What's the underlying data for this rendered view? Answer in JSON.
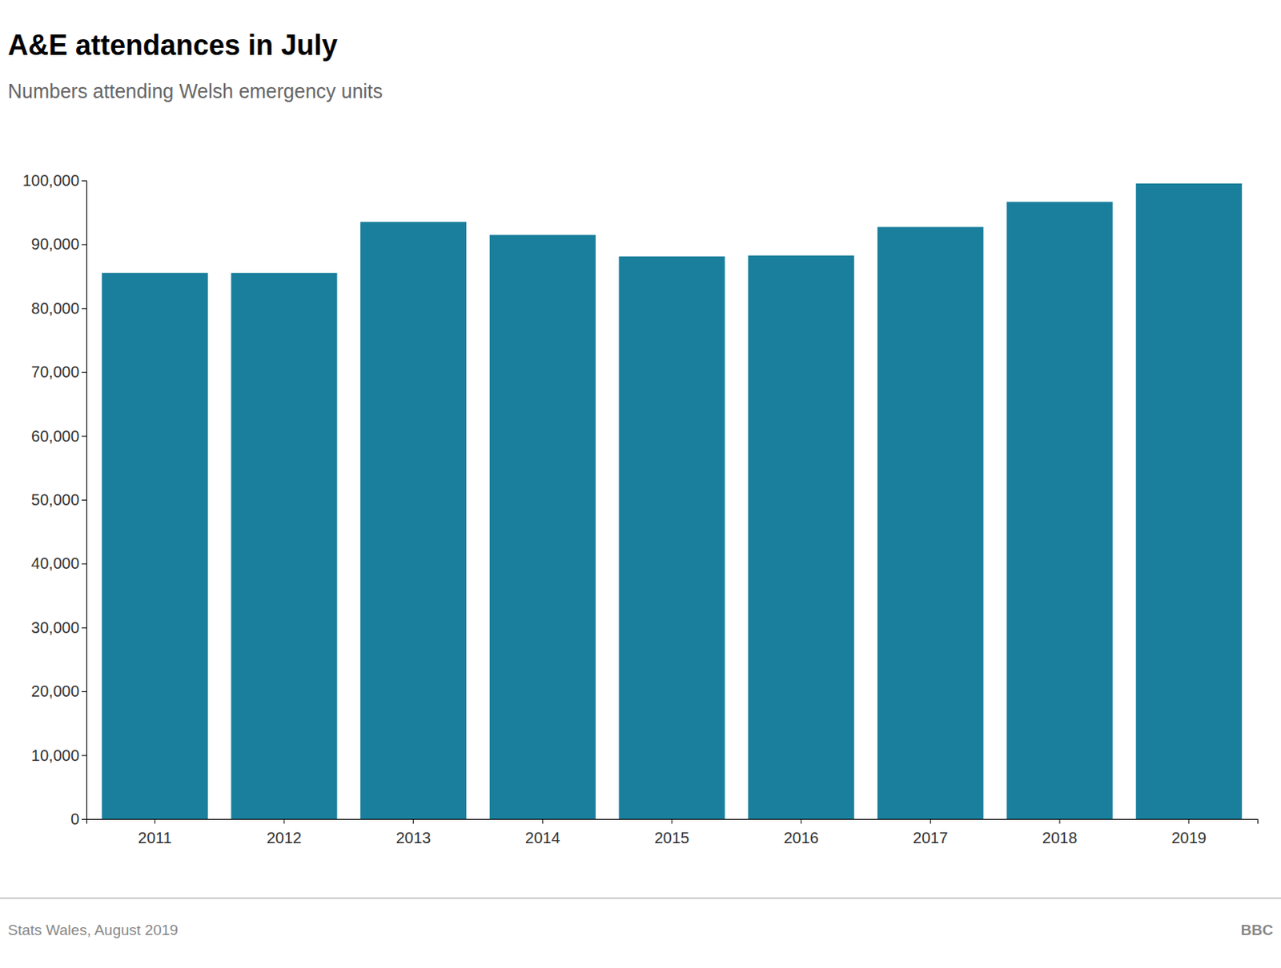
{
  "chart_data": {
    "type": "bar",
    "title": "A&E attendances in July",
    "subtitle": "Numbers attending Welsh emergency units",
    "categories": [
      "2011",
      "2012",
      "2013",
      "2014",
      "2015",
      "2016",
      "2017",
      "2018",
      "2019"
    ],
    "values": [
      85527,
      85521,
      93503,
      91464,
      88104,
      88249,
      92706,
      96645,
      99525
    ],
    "color": "#1a7f9c",
    "ylim": [
      0,
      100000
    ],
    "yticks": [
      0,
      {
        "value": 10000,
        "label": "10,000"
      },
      {
        "value": 20000,
        "label": "20,000"
      },
      {
        "value": 30000,
        "label": "30,000"
      },
      {
        "value": 40000,
        "label": "40,000"
      },
      {
        "value": 50000,
        "label": "50,000"
      },
      {
        "value": 60000,
        "label": "60,000"
      },
      {
        "value": 70000,
        "label": "70,000"
      },
      {
        "value": 80000,
        "label": "80,000"
      },
      {
        "value": 90000,
        "label": "90,000"
      },
      {
        "value": 100000,
        "label": "100,000"
      }
    ],
    "grid": false,
    "annotations": [
      "Stats Wales, August 2019",
      "BBC"
    ]
  }
}
